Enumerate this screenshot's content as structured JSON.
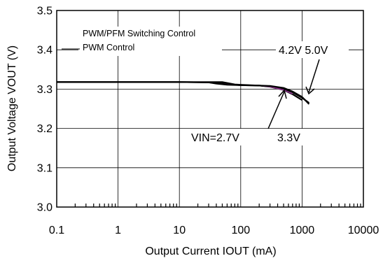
{
  "chart_data": {
    "type": "line",
    "title": "",
    "xlabel": "Output Current  IOUT (mA)",
    "ylabel": "Output Voltage VOUT (V)",
    "x_scale": "log",
    "xlim": [
      0.1,
      10000
    ],
    "ylim": [
      3.0,
      3.5
    ],
    "x_ticks": [
      "0.1",
      "1",
      "10",
      "100",
      "1000",
      "10000"
    ],
    "y_ticks": [
      "3.0",
      "3.1",
      "3.2",
      "3.3",
      "3.4",
      "3.5"
    ],
    "grid": true,
    "annotations": {
      "mode_line1": "PWM/PFM Switching Control",
      "mode_line2": "PWM  Control",
      "vin_left": "VIN=2.7V",
      "vin_mid": "3.3V",
      "vin_right": "4.2V 5.0V"
    },
    "series": [
      {
        "color": "#000000",
        "x": [
          0.1,
          1,
          10,
          30,
          50,
          80,
          100,
          200,
          300,
          500,
          700,
          1000
        ],
        "y": [
          3.318,
          3.318,
          3.318,
          3.318,
          3.318,
          3.312,
          3.311,
          3.309,
          3.306,
          3.298,
          3.287,
          3.272
        ]
      },
      {
        "color": "#000000",
        "x": [
          0.1,
          1,
          10,
          30,
          50,
          80,
          100,
          200,
          300,
          500,
          700,
          1000,
          1300
        ],
        "y": [
          3.318,
          3.318,
          3.318,
          3.317,
          3.314,
          3.311,
          3.31,
          3.309,
          3.307,
          3.301,
          3.292,
          3.278,
          3.265
        ]
      },
      {
        "color": "#993399",
        "x": [
          0.1,
          1,
          10,
          30,
          40,
          60,
          100,
          200,
          300,
          500,
          700
        ],
        "y": [
          3.318,
          3.318,
          3.318,
          3.317,
          3.314,
          3.312,
          3.31,
          3.309,
          3.306,
          3.298,
          3.288
        ]
      },
      {
        "color": "#000000",
        "x": [
          0.1,
          1,
          10,
          30,
          40,
          60,
          100,
          200,
          300,
          500,
          700,
          1000,
          1300
        ],
        "y": [
          3.318,
          3.318,
          3.318,
          3.317,
          3.314,
          3.311,
          3.31,
          3.309,
          3.308,
          3.303,
          3.294,
          3.28,
          3.262
        ]
      }
    ]
  }
}
